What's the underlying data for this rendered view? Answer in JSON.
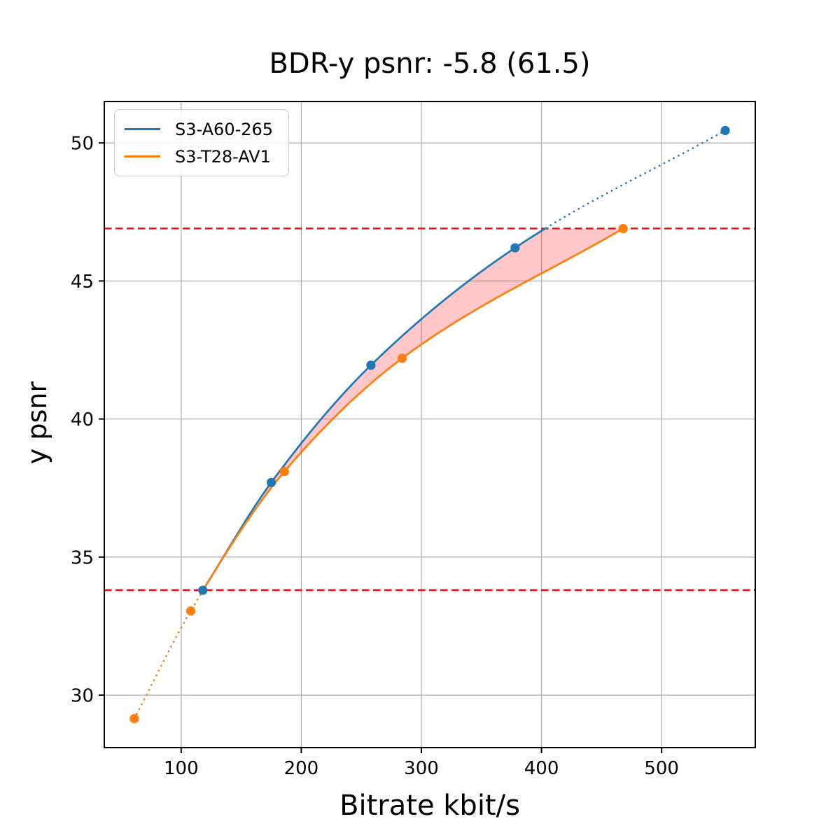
{
  "chart_data": {
    "type": "line",
    "title": "BDR-y psnr: -5.8 (61.5)",
    "xlabel": "Bitrate kbit/s",
    "ylabel": "y psnr",
    "xlim": [
      36,
      578
    ],
    "ylim": [
      28.1,
      51.5
    ],
    "x_ticks": [
      100,
      200,
      300,
      400,
      500
    ],
    "y_ticks": [
      30,
      35,
      40,
      45,
      50
    ],
    "grid": true,
    "legend_position": "upper left",
    "series": [
      {
        "name": "S3-A60-265",
        "color": "#1f77b4",
        "marker": "circle",
        "x": [
          118,
          175,
          258,
          378,
          553
        ],
        "y": [
          33.8,
          37.7,
          41.95,
          46.2,
          50.45
        ]
      },
      {
        "name": "S3-T28-AV1",
        "color": "#ff7f0e",
        "marker": "circle",
        "x": [
          61,
          108,
          186,
          284,
          468
        ],
        "y": [
          29.15,
          33.05,
          38.1,
          42.2,
          46.9
        ]
      }
    ],
    "hlines": {
      "values": [
        33.8,
        46.9
      ],
      "color": "#ff0000",
      "style": "dashed"
    },
    "shaded_region": {
      "between": [
        "S3-A60-265",
        "S3-T28-AV1"
      ],
      "color": "#ff0000",
      "opacity": 0.22
    },
    "colors": {
      "grid": "#b0b0b0",
      "axes": "#000000",
      "background": "#ffffff"
    }
  }
}
